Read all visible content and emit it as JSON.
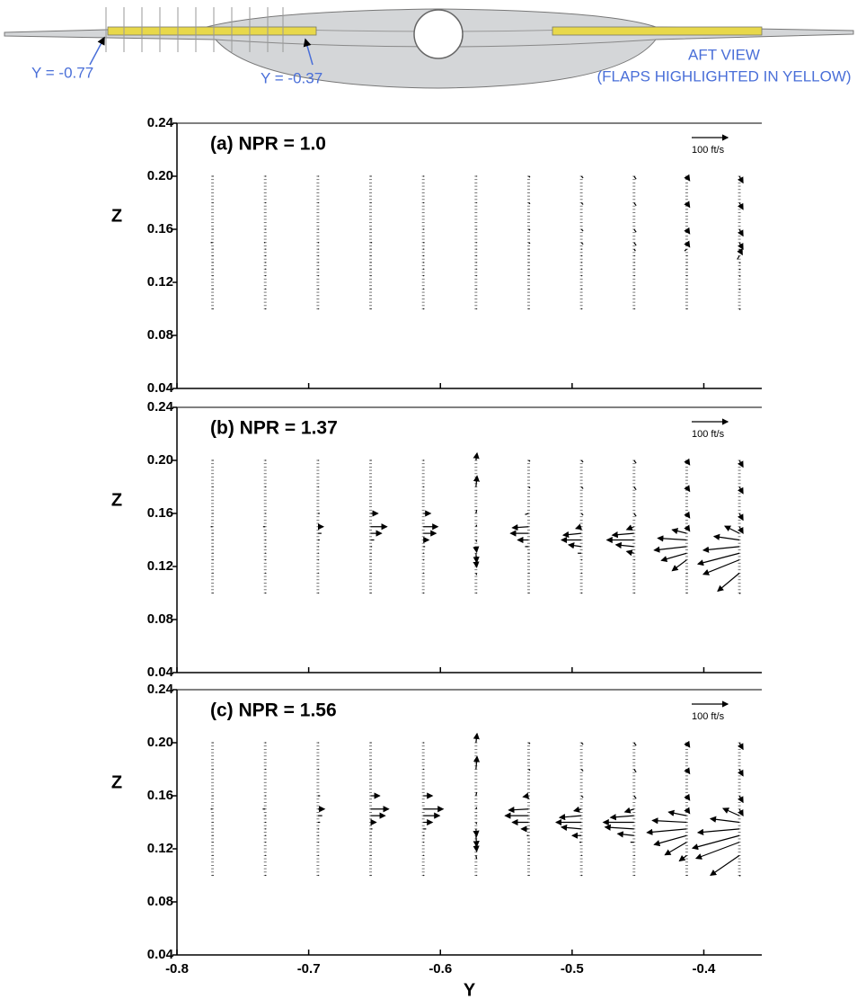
{
  "header": {
    "labels": [
      "Y = -0.77",
      "Y = -0.37",
      "AFT VIEW",
      "(FLAPS HIGHLIGHTED IN YELLOW)"
    ]
  },
  "chart_data": [
    {
      "type": "quiver",
      "title": "(a) NPR = 1.0",
      "y_label": "Z",
      "xtick_labels": false,
      "xlim": [
        -0.8,
        -0.356
      ],
      "ylim": [
        0.04,
        0.24
      ],
      "xticks": [
        -0.8,
        -0.7,
        -0.6,
        -0.5,
        -0.4
      ],
      "yticks": [
        0.04,
        0.08,
        0.12,
        0.16,
        {
          "value": 0.2,
          "label": "0.20"
        },
        0.24
      ],
      "reference": {
        "value": 100,
        "label": "100 ft/s"
      },
      "stations": [
        -0.773,
        -0.733,
        -0.693,
        -0.653,
        -0.613,
        -0.573,
        -0.533,
        -0.493,
        -0.453,
        -0.413,
        -0.373
      ],
      "z": [
        0.1,
        0.115,
        0.125,
        0.13,
        0.135,
        0.14,
        0.145,
        0.15,
        0.16,
        0.18,
        0.2
      ],
      "u": [
        [
          2,
          2,
          2,
          2,
          2,
          2,
          2,
          -5,
          2,
          2,
          2
        ],
        [
          2,
          2,
          2,
          2,
          2,
          2,
          2,
          -3,
          2,
          2,
          2
        ],
        [
          2,
          2,
          2,
          2,
          2,
          2,
          2,
          3,
          2,
          2,
          2
        ],
        [
          2,
          2,
          2,
          2,
          2,
          2,
          2,
          4,
          2,
          2,
          2
        ],
        [
          2,
          2,
          2,
          2,
          2,
          2,
          2,
          3,
          2,
          2,
          2
        ],
        [
          2,
          2,
          2,
          2,
          2,
          2,
          2,
          2,
          2,
          2,
          2
        ],
        [
          2,
          2,
          2,
          2,
          2,
          2,
          2,
          4,
          4,
          4,
          4
        ],
        [
          2,
          2,
          2,
          2,
          2,
          2,
          2,
          5,
          5,
          5,
          5
        ],
        [
          2,
          2,
          2,
          2,
          2,
          2,
          4,
          6,
          6,
          6,
          6
        ],
        [
          2,
          2,
          2,
          2,
          2,
          2,
          -6,
          8,
          8,
          8,
          8
        ],
        [
          3,
          3,
          3,
          3,
          3,
          -6,
          8,
          10,
          10,
          10,
          10
        ]
      ],
      "w": [
        [
          0,
          0,
          0,
          0,
          0,
          0,
          0,
          0,
          0,
          0,
          0
        ],
        [
          0,
          0,
          0,
          0,
          0,
          0,
          0,
          0,
          0,
          0,
          0
        ],
        [
          0,
          0,
          0,
          0,
          0,
          0,
          0,
          0,
          0,
          0,
          0
        ],
        [
          0,
          0,
          0,
          0,
          0,
          0,
          0,
          0,
          0,
          0,
          0
        ],
        [
          0,
          0,
          0,
          0,
          0,
          0,
          0,
          0,
          0,
          0,
          0
        ],
        [
          0,
          0,
          0,
          0,
          0,
          0,
          0,
          0,
          0,
          0,
          0
        ],
        [
          0,
          0,
          0,
          0,
          0,
          0,
          0,
          -3,
          -3,
          -3,
          -3
        ],
        [
          0,
          0,
          0,
          0,
          0,
          0,
          0,
          -5,
          -5,
          -5,
          -5
        ],
        [
          0,
          0,
          0,
          0,
          0,
          0,
          -5,
          -8,
          -8,
          -8,
          -8
        ],
        [
          0,
          0,
          0,
          0,
          0,
          0,
          -5,
          -12,
          -12,
          -12,
          -12
        ],
        [
          -2,
          -2,
          -2,
          -2,
          -2,
          -10,
          -15,
          -18,
          -18,
          -18,
          -18
        ]
      ]
    },
    {
      "type": "quiver",
      "title": "(b) NPR = 1.37",
      "y_label": "Z",
      "xtick_labels": false,
      "xlim": [
        -0.8,
        -0.356
      ],
      "ylim": [
        0.04,
        0.24
      ],
      "xticks": [
        -0.8,
        -0.7,
        -0.6,
        -0.5,
        -0.4
      ],
      "yticks": [
        0.04,
        0.08,
        0.12,
        0.16,
        {
          "value": 0.2,
          "label": "0.20"
        },
        0.24
      ],
      "reference": {
        "value": 100,
        "label": "100 ft/s"
      },
      "stations": [
        -0.773,
        -0.733,
        -0.693,
        -0.653,
        -0.613,
        -0.573,
        -0.533,
        -0.493,
        -0.453,
        -0.413,
        -0.373
      ],
      "z": [
        0.1,
        0.115,
        0.125,
        0.13,
        0.135,
        0.14,
        0.145,
        0.15,
        0.16,
        0.18,
        0.2
      ],
      "u": [
        [
          2,
          2,
          2,
          2,
          2,
          2,
          2,
          -5,
          2,
          2,
          2
        ],
        [
          2,
          2,
          2,
          2,
          2,
          2,
          2,
          -6,
          2,
          2,
          2
        ],
        [
          2,
          2,
          2,
          2,
          2,
          5,
          10,
          15,
          5,
          2,
          2
        ],
        [
          2,
          2,
          2,
          2,
          4,
          10,
          30,
          45,
          20,
          2,
          2
        ],
        [
          2,
          2,
          2,
          2,
          5,
          15,
          35,
          40,
          20,
          2,
          2
        ],
        [
          2,
          2,
          2,
          2,
          2,
          2,
          2,
          2,
          2,
          3,
          3
        ],
        [
          2,
          2,
          2,
          2,
          -10,
          -30,
          -50,
          -45,
          -10,
          4,
          4
        ],
        [
          2,
          2,
          2,
          -10,
          -35,
          -55,
          -50,
          -15,
          5,
          5,
          5
        ],
        [
          2,
          2,
          2,
          -20,
          -50,
          -75,
          -60,
          -20,
          6,
          6,
          6
        ],
        [
          2,
          2,
          -40,
          -70,
          -90,
          -80,
          -40,
          8,
          8,
          8,
          8
        ],
        [
          3,
          -60,
          -100,
          -115,
          -100,
          -70,
          -40,
          10,
          10,
          10,
          10
        ]
      ],
      "w": [
        [
          0,
          0,
          0,
          0,
          0,
          0,
          0,
          0,
          0,
          0,
          0
        ],
        [
          0,
          0,
          0,
          0,
          0,
          0,
          0,
          0,
          0,
          0,
          0
        ],
        [
          0,
          0,
          0,
          0,
          0,
          0,
          0,
          0,
          0,
          0,
          0
        ],
        [
          0,
          0,
          0,
          0,
          0,
          0,
          0,
          0,
          0,
          0,
          0
        ],
        [
          0,
          0,
          0,
          0,
          0,
          0,
          0,
          0,
          0,
          0,
          0
        ],
        [
          0,
          -5,
          -20,
          -25,
          -15,
          -5,
          0,
          5,
          10,
          30,
          20
        ],
        [
          0,
          0,
          0,
          0,
          0,
          0,
          0,
          -3,
          -3,
          -3,
          -3
        ],
        [
          0,
          0,
          0,
          0,
          5,
          0,
          -5,
          -5,
          -5,
          -5,
          -5
        ],
        [
          0,
          0,
          0,
          5,
          5,
          0,
          -5,
          -8,
          -8,
          -8,
          -8
        ],
        [
          0,
          0,
          -30,
          -20,
          -10,
          5,
          10,
          -12,
          -12,
          -12,
          -12
        ],
        [
          -2,
          -50,
          -40,
          -30,
          -10,
          10,
          20,
          -18,
          -18,
          -18,
          -18
        ]
      ]
    },
    {
      "type": "quiver",
      "title": "(c) NPR = 1.56",
      "y_label": "Z",
      "x_label": "Y",
      "xtick_labels": true,
      "xlim": [
        -0.8,
        -0.356
      ],
      "ylim": [
        0.04,
        0.24
      ],
      "xticks": [
        -0.8,
        -0.7,
        -0.6,
        -0.5,
        -0.4
      ],
      "yticks": [
        0.04,
        0.08,
        0.12,
        0.16,
        {
          "value": 0.2,
          "label": "0.20"
        },
        0.24
      ],
      "reference": {
        "value": 100,
        "label": "100 ft/s"
      },
      "stations": [
        -0.773,
        -0.733,
        -0.693,
        -0.653,
        -0.613,
        -0.573,
        -0.533,
        -0.493,
        -0.453,
        -0.413,
        -0.373
      ],
      "z": [
        0.1,
        0.115,
        0.125,
        0.13,
        0.135,
        0.14,
        0.145,
        0.15,
        0.16,
        0.18,
        0.2
      ],
      "u": [
        [
          2,
          2,
          2,
          2,
          2,
          2,
          2,
          -5,
          2,
          2,
          2
        ],
        [
          2,
          2,
          2,
          2,
          2,
          2,
          2,
          -7,
          2,
          2,
          2
        ],
        [
          2,
          2,
          2,
          2,
          3,
          6,
          12,
          18,
          6,
          2,
          2
        ],
        [
          2,
          2,
          2,
          2,
          5,
          15,
          40,
          50,
          25,
          2,
          2
        ],
        [
          2,
          2,
          2,
          3,
          8,
          25,
          45,
          55,
          25,
          2,
          2
        ],
        [
          2,
          2,
          2,
          2,
          2,
          2,
          2,
          2,
          2,
          3,
          3
        ],
        [
          2,
          2,
          2,
          -5,
          -20,
          -45,
          -65,
          -55,
          -15,
          4,
          4
        ],
        [
          2,
          2,
          -5,
          -25,
          -55,
          -70,
          -60,
          -20,
          5,
          5,
          5
        ],
        [
          2,
          2,
          -10,
          -45,
          -80,
          -85,
          -65,
          -25,
          6,
          6,
          6
        ],
        [
          2,
          -20,
          -60,
          -90,
          -110,
          -95,
          -50,
          8,
          8,
          8,
          8
        ],
        [
          3,
          -80,
          -120,
          -130,
          -115,
          -80,
          -45,
          10,
          10,
          10,
          10
        ]
      ],
      "w": [
        [
          0,
          0,
          0,
          0,
          0,
          0,
          0,
          0,
          0,
          0,
          0
        ],
        [
          0,
          0,
          0,
          0,
          0,
          0,
          0,
          0,
          0,
          0,
          0
        ],
        [
          0,
          0,
          0,
          0,
          0,
          0,
          0,
          0,
          0,
          0,
          0
        ],
        [
          0,
          0,
          0,
          0,
          0,
          0,
          0,
          0,
          0,
          0,
          0
        ],
        [
          0,
          0,
          0,
          0,
          0,
          0,
          0,
          0,
          0,
          0,
          0
        ],
        [
          0,
          -10,
          -25,
          -30,
          -20,
          -5,
          0,
          5,
          10,
          35,
          25
        ],
        [
          0,
          0,
          0,
          0,
          0,
          0,
          0,
          -3,
          -3,
          -3,
          -3
        ],
        [
          0,
          0,
          0,
          0,
          5,
          0,
          -5,
          -5,
          -5,
          -5,
          -5
        ],
        [
          0,
          0,
          0,
          5,
          5,
          0,
          -5,
          -8,
          -8,
          -8,
          -8
        ],
        [
          0,
          -15,
          -35,
          -25,
          -10,
          5,
          10,
          -12,
          -12,
          -12,
          -12
        ],
        [
          -2,
          -55,
          -45,
          -35,
          -10,
          10,
          20,
          -18,
          -18,
          -18,
          -18
        ]
      ]
    }
  ]
}
